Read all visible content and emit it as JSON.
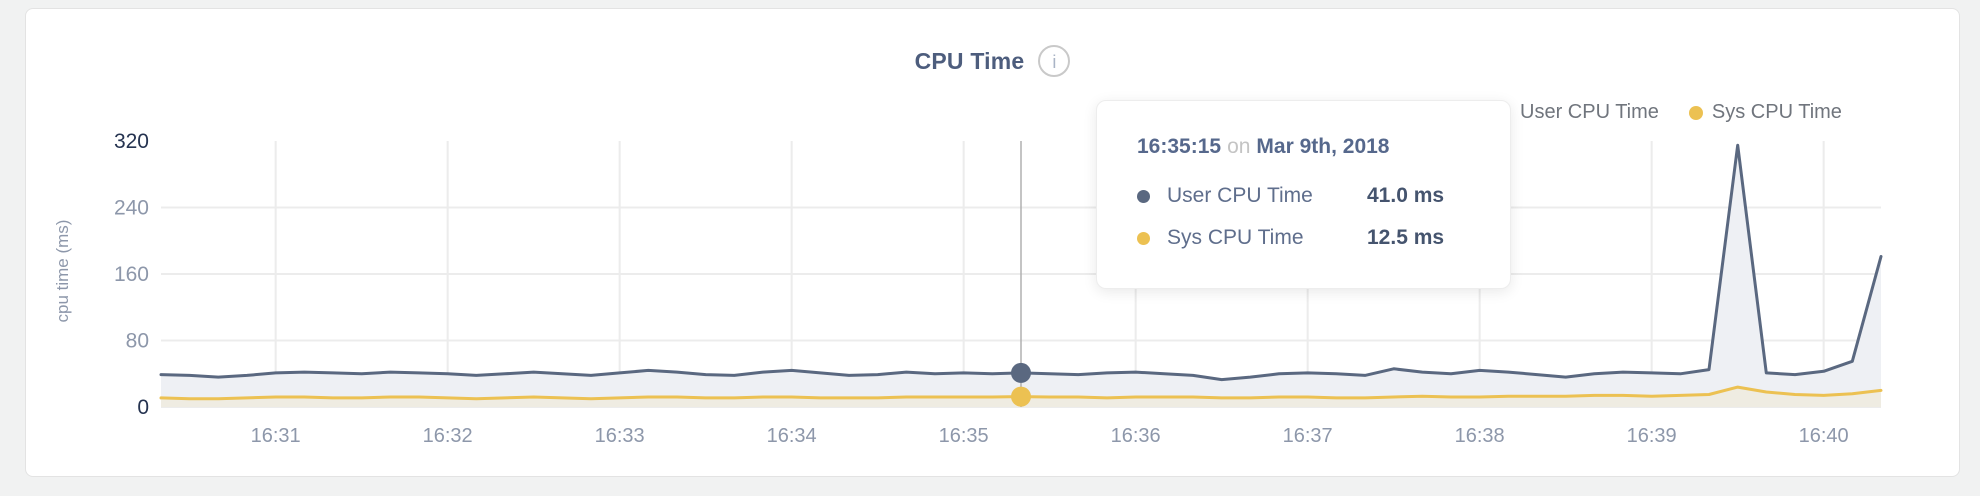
{
  "header": {
    "title": "CPU Time",
    "info_icon": "i"
  },
  "legend": {
    "items": [
      {
        "label": "User CPU Time",
        "color": "#5a6880"
      },
      {
        "label": "Sys CPU Time",
        "color": "#ecc152"
      }
    ]
  },
  "tooltip": {
    "time": "16:35:15",
    "conjunction": "on",
    "date": "Mar 9th, 2018",
    "rows": [
      {
        "label": "User CPU Time",
        "value": "41.0 ms",
        "color": "#5a6880"
      },
      {
        "label": "Sys CPU Time",
        "value": "12.5 ms",
        "color": "#ecc152"
      }
    ]
  },
  "chart_data": {
    "type": "area",
    "title": "CPU Time",
    "xlabel": "",
    "ylabel": "cpu time (ms)",
    "ylim": [
      0,
      320
    ],
    "x_domain": [
      20,
      620
    ],
    "t_start": 20,
    "t_step": 10,
    "grid": true,
    "legend_position": "top-right",
    "x_ticks": [
      {
        "t": 60,
        "label": "16:31"
      },
      {
        "t": 120,
        "label": "16:32"
      },
      {
        "t": 180,
        "label": "16:33"
      },
      {
        "t": 240,
        "label": "16:34"
      },
      {
        "t": 300,
        "label": "16:35"
      },
      {
        "t": 360,
        "label": "16:36"
      },
      {
        "t": 420,
        "label": "16:37"
      },
      {
        "t": 480,
        "label": "16:38"
      },
      {
        "t": 540,
        "label": "16:39"
      },
      {
        "t": 600,
        "label": "16:40"
      }
    ],
    "y_ticks": [
      {
        "value": 0,
        "label": "0",
        "strong": true
      },
      {
        "value": 80,
        "label": "80",
        "strong": false
      },
      {
        "value": 160,
        "label": "160",
        "strong": false
      },
      {
        "value": 240,
        "label": "240",
        "strong": false
      },
      {
        "value": 320,
        "label": "320",
        "strong": true
      }
    ],
    "series": [
      {
        "name": "User CPU Time",
        "color": "#5a6880",
        "fill": "#eef0f4",
        "values": [
          39,
          38,
          36,
          38,
          41,
          42,
          41,
          40,
          42,
          41,
          40,
          38,
          40,
          42,
          40,
          38,
          41,
          44,
          42,
          39,
          38,
          42,
          44,
          41,
          38,
          39,
          42,
          40,
          41,
          40,
          41,
          40,
          39,
          41,
          42,
          40,
          38,
          33,
          36,
          40,
          41,
          40,
          38,
          46,
          42,
          40,
          44,
          42,
          39,
          36,
          40,
          42,
          41,
          40,
          45,
          315,
          41,
          39,
          43,
          55,
          181
        ]
      },
      {
        "name": "Sys CPU Time",
        "color": "#ecc152",
        "fill": "#efece2",
        "values": [
          11,
          10,
          10,
          11,
          12,
          12,
          11,
          11,
          12,
          12,
          11,
          10,
          11,
          12,
          11,
          10,
          11,
          12,
          12,
          11,
          11,
          12,
          12,
          11,
          11,
          11,
          12,
          12,
          12,
          12,
          12.5,
          12,
          12,
          11,
          12,
          12,
          12,
          11,
          11,
          12,
          12,
          11,
          11,
          12,
          13,
          12,
          12,
          13,
          13,
          13,
          14,
          14,
          13,
          14,
          15,
          24,
          18,
          15,
          14,
          16,
          20
        ]
      }
    ],
    "hover": {
      "t": 320,
      "time_label": "16:35:15",
      "user_value": 41.0,
      "sys_value": 12.5
    }
  },
  "colors": {
    "grid": "#ececec",
    "axis_tick": "#8d97aa",
    "axis_tick_strong": "#253350",
    "hover_line": "#b0b0b0",
    "card_background": "#ffffff",
    "page_background": "#f1f2f2"
  }
}
